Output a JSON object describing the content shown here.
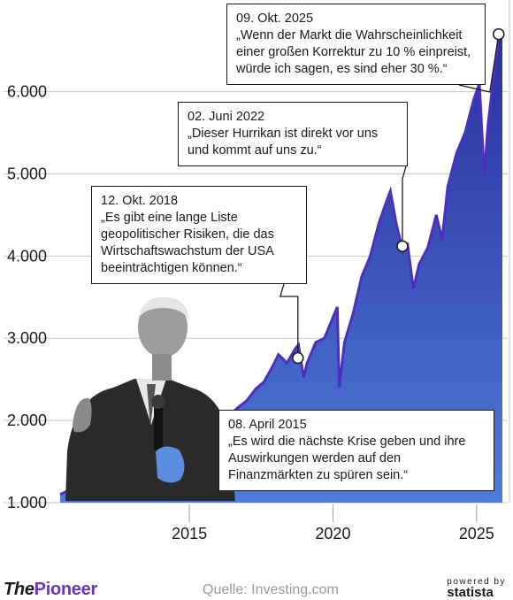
{
  "colors": {
    "area_top": "#2a2f9e",
    "area_bottom": "#4e7bd8",
    "line": "#4d2fbf",
    "accent": "#6a34c9",
    "grid": "#c8c8c8"
  },
  "chart_data": {
    "type": "area",
    "title": "",
    "xlabel": "",
    "ylabel": "",
    "xlim": [
      2010.5,
      2025.9
    ],
    "ylim": [
      1000,
      6900
    ],
    "y_ticks": [
      "1.000",
      "2.000",
      "3.000",
      "4.000",
      "5.000",
      "6.000"
    ],
    "y_tick_values": [
      1000,
      2000,
      3000,
      4000,
      5000,
      6000
    ],
    "x_ticks": [
      "2015",
      "2020",
      "2025"
    ],
    "x_tick_values": [
      2015,
      2020,
      2025
    ],
    "grid": true,
    "series": [
      {
        "x": [
          2010.5,
          2010.8,
          2011.0,
          2011.3,
          2011.6,
          2011.8,
          2012.0,
          2012.3,
          2012.6,
          2012.9,
          2013.2,
          2013.5,
          2013.8,
          2014.1,
          2014.4,
          2014.7,
          2015.0,
          2015.3,
          2015.6,
          2015.9,
          2016.1,
          2016.4,
          2016.7,
          2017.0,
          2017.3,
          2017.6,
          2017.9,
          2018.1,
          2018.4,
          2018.7,
          2018.8,
          2018.98,
          2019.1,
          2019.4,
          2019.7,
          2020.0,
          2020.15,
          2020.22,
          2020.4,
          2020.7,
          2021.0,
          2021.3,
          2021.6,
          2021.9,
          2022.0,
          2022.2,
          2022.44,
          2022.6,
          2022.8,
          2023.0,
          2023.3,
          2023.6,
          2023.8,
          2024.0,
          2024.3,
          2024.6,
          2024.9,
          2025.1,
          2025.27,
          2025.4,
          2025.6,
          2025.77,
          2025.9
        ],
        "values": [
          1100,
          1150,
          1280,
          1330,
          1150,
          1250,
          1310,
          1380,
          1420,
          1420,
          1520,
          1630,
          1760,
          1830,
          1900,
          1980,
          2060,
          2110,
          2000,
          2050,
          1940,
          2060,
          2160,
          2240,
          2380,
          2470,
          2660,
          2800,
          2700,
          2880,
          2920,
          2520,
          2700,
          2950,
          3000,
          3250,
          3380,
          2400,
          2950,
          3300,
          3750,
          4000,
          4400,
          4700,
          4790,
          4400,
          4050,
          4130,
          3600,
          3900,
          4100,
          4500,
          4200,
          4850,
          5250,
          5500,
          5900,
          6100,
          4980,
          5600,
          6200,
          6650,
          6700
        ]
      }
    ],
    "annotations": [
      {
        "date": "08. April 2015",
        "text": "„Es wird die nächste Krise geben und ihre Auswirkungen werden auf den Finanzmärkten zu spüren sein.“",
        "x": 2015.27,
        "y": 2100
      },
      {
        "date": "12. Okt. 2018",
        "text": "„Es gibt eine lange Liste geopolitischer Risiken, die das Wirtschaftswachstum der USA beeinträchtigen können.“",
        "x": 2018.78,
        "y": 2760
      },
      {
        "date": "02. Juni 2022",
        "text": "„Dieser Hurrikan ist direkt vor uns und kommt auf uns zu.“",
        "x": 2022.42,
        "y": 4120
      },
      {
        "date": "09. Okt. 2025",
        "text": "„Wenn der Markt die Wahrscheinlichkeit einer großen Korrektur zu 10 % einpreist, würde ich sagen, es sind eher 30 %.“",
        "x": 2025.77,
        "y": 6700
      }
    ]
  },
  "footer": {
    "brand_the": "The",
    "brand_pioneer": "Pioneer",
    "source": "Quelle: Investing.com",
    "powered_by": "powered by",
    "statista": "statista"
  }
}
